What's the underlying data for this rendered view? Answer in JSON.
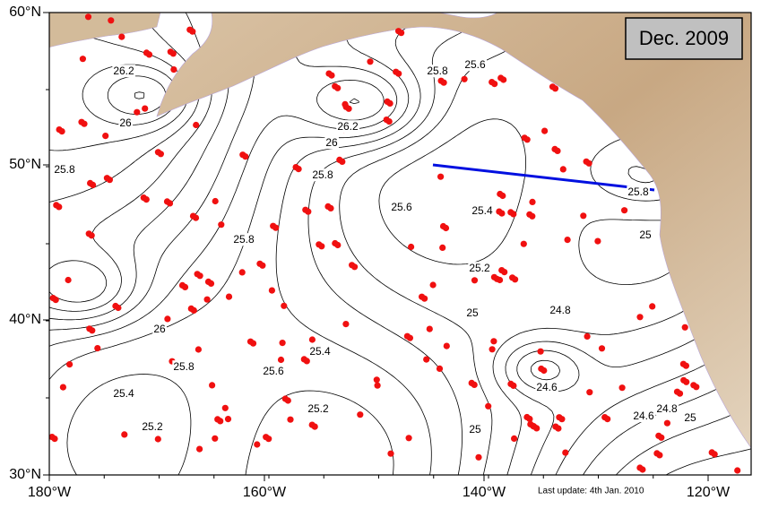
{
  "title": "Dec. 2009",
  "x_axis_labels": [
    "180°W",
    "160°W",
    "140°W",
    "120°W"
  ],
  "y_axis_labels": [
    "60°N",
    "50°N",
    "40°N",
    "30°N"
  ],
  "contour_labels": [
    "26.2",
    "26",
    "25.8",
    "26.2",
    "26",
    "25.8",
    "25.8",
    "25.6",
    "25.6",
    "25.4",
    "25.8",
    "25.2",
    "25",
    "24.8",
    "25",
    "25.4",
    "25.6",
    "26",
    "25.8",
    "25.4",
    "25.2",
    "25.2",
    "25",
    "24.6",
    "24.6",
    "24.8",
    "25",
    "25.8"
  ],
  "footer": "Last update: 4th Jan. 2010"
}
